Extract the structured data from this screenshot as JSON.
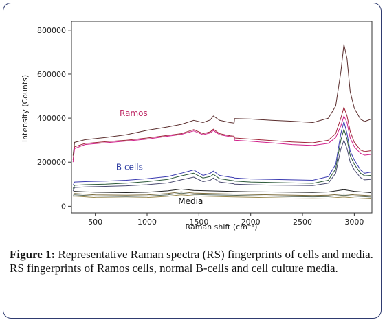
{
  "caption": {
    "label": "Figure 1:",
    "text": " Representative Raman spectra (RS) fingerprints of cells and media. RS fingerprints of Ramos cells, normal B-cells and cell culture media."
  },
  "chart_data": {
    "type": "line",
    "xlabel": "Raman shift (cm⁻¹)",
    "ylabel": "Intensity (Counts)",
    "xlim": [
      270,
      3170
    ],
    "ylim": [
      -30000,
      840000
    ],
    "x_ticks": [
      500,
      1000,
      1500,
      2000,
      2500,
      3000
    ],
    "y_ticks": [
      0,
      200000,
      400000,
      600000,
      800000
    ],
    "y_tick_labels": [
      "0",
      "200000",
      "400000",
      "600000",
      "800000"
    ],
    "annotations": [
      {
        "text": "Ramos",
        "x": 870,
        "y": 410000,
        "color": "#c0306a"
      },
      {
        "text": "B cells",
        "x": 830,
        "y": 165000,
        "color": "#2a3aa0"
      },
      {
        "text": "Media",
        "x": 1420,
        "y": 10000,
        "color": "#111111"
      }
    ],
    "series": [
      {
        "color": "#5a2d2d",
        "values": [
          [
            285,
            230000
          ],
          [
            300,
            290000
          ],
          [
            400,
            302000
          ],
          [
            600,
            312000
          ],
          [
            800,
            325000
          ],
          [
            1000,
            345000
          ],
          [
            1200,
            360000
          ],
          [
            1330,
            372000
          ],
          [
            1450,
            390000
          ],
          [
            1540,
            380000
          ],
          [
            1610,
            392000
          ],
          [
            1640,
            410000
          ],
          [
            1700,
            390000
          ],
          [
            1800,
            380000
          ],
          [
            1840,
            378000
          ],
          [
            1845,
            398000
          ],
          [
            2000,
            396000
          ],
          [
            2200,
            390000
          ],
          [
            2400,
            386000
          ],
          [
            2600,
            380000
          ],
          [
            2750,
            400000
          ],
          [
            2820,
            455000
          ],
          [
            2870,
            610000
          ],
          [
            2900,
            735000
          ],
          [
            2930,
            670000
          ],
          [
            2960,
            520000
          ],
          [
            3000,
            445000
          ],
          [
            3060,
            395000
          ],
          [
            3100,
            385000
          ],
          [
            3160,
            395000
          ]
        ]
      },
      {
        "color": "#a0253a",
        "values": [
          [
            285,
            210000
          ],
          [
            300,
            270000
          ],
          [
            400,
            285000
          ],
          [
            600,
            293000
          ],
          [
            800,
            300000
          ],
          [
            1000,
            310000
          ],
          [
            1200,
            322000
          ],
          [
            1330,
            330000
          ],
          [
            1450,
            348000
          ],
          [
            1540,
            330000
          ],
          [
            1610,
            338000
          ],
          [
            1640,
            350000
          ],
          [
            1700,
            330000
          ],
          [
            1800,
            320000
          ],
          [
            1840,
            318000
          ],
          [
            1845,
            310000
          ],
          [
            2000,
            305000
          ],
          [
            2200,
            298000
          ],
          [
            2400,
            292000
          ],
          [
            2600,
            288000
          ],
          [
            2750,
            300000
          ],
          [
            2820,
            330000
          ],
          [
            2870,
            400000
          ],
          [
            2900,
            450000
          ],
          [
            2930,
            410000
          ],
          [
            2960,
            340000
          ],
          [
            3000,
            290000
          ],
          [
            3060,
            255000
          ],
          [
            3100,
            248000
          ],
          [
            3160,
            252000
          ]
        ]
      },
      {
        "color": "#d0208a",
        "values": [
          [
            285,
            200000
          ],
          [
            300,
            262000
          ],
          [
            400,
            280000
          ],
          [
            600,
            288000
          ],
          [
            800,
            296000
          ],
          [
            1000,
            305000
          ],
          [
            1200,
            318000
          ],
          [
            1330,
            326000
          ],
          [
            1450,
            342000
          ],
          [
            1540,
            325000
          ],
          [
            1610,
            333000
          ],
          [
            1640,
            344000
          ],
          [
            1700,
            325000
          ],
          [
            1800,
            316000
          ],
          [
            1840,
            314000
          ],
          [
            1845,
            300000
          ],
          [
            2000,
            295000
          ],
          [
            2200,
            288000
          ],
          [
            2400,
            280000
          ],
          [
            2600,
            276000
          ],
          [
            2750,
            286000
          ],
          [
            2820,
            312000
          ],
          [
            2870,
            365000
          ],
          [
            2900,
            410000
          ],
          [
            2930,
            380000
          ],
          [
            2960,
            310000
          ],
          [
            3000,
            270000
          ],
          [
            3060,
            240000
          ],
          [
            3100,
            232000
          ],
          [
            3160,
            235000
          ]
        ]
      },
      {
        "color": "#3a3ab0",
        "values": [
          [
            285,
            95000
          ],
          [
            300,
            110000
          ],
          [
            400,
            112000
          ],
          [
            600,
            114000
          ],
          [
            800,
            118000
          ],
          [
            1000,
            125000
          ],
          [
            1200,
            135000
          ],
          [
            1330,
            150000
          ],
          [
            1450,
            165000
          ],
          [
            1540,
            140000
          ],
          [
            1610,
            150000
          ],
          [
            1640,
            160000
          ],
          [
            1700,
            140000
          ],
          [
            1800,
            132000
          ],
          [
            1840,
            130000
          ],
          [
            1845,
            128000
          ],
          [
            2000,
            124000
          ],
          [
            2200,
            122000
          ],
          [
            2400,
            120000
          ],
          [
            2600,
            118000
          ],
          [
            2750,
            135000
          ],
          [
            2820,
            190000
          ],
          [
            2870,
            330000
          ],
          [
            2900,
            385000
          ],
          [
            2930,
            330000
          ],
          [
            2960,
            250000
          ],
          [
            3000,
            210000
          ],
          [
            3060,
            165000
          ],
          [
            3100,
            150000
          ],
          [
            3160,
            155000
          ]
        ]
      },
      {
        "color": "#2d5a3a",
        "values": [
          [
            285,
            80000
          ],
          [
            300,
            95000
          ],
          [
            400,
            98000
          ],
          [
            600,
            100000
          ],
          [
            800,
            105000
          ],
          [
            1000,
            112000
          ],
          [
            1200,
            122000
          ],
          [
            1330,
            138000
          ],
          [
            1450,
            150000
          ],
          [
            1540,
            128000
          ],
          [
            1610,
            135000
          ],
          [
            1640,
            145000
          ],
          [
            1700,
            125000
          ],
          [
            1800,
            118000
          ],
          [
            1840,
            116000
          ],
          [
            1845,
            114000
          ],
          [
            2000,
            110000
          ],
          [
            2200,
            108000
          ],
          [
            2400,
            106000
          ],
          [
            2600,
            104000
          ],
          [
            2750,
            118000
          ],
          [
            2820,
            170000
          ],
          [
            2870,
            300000
          ],
          [
            2900,
            350000
          ],
          [
            2930,
            305000
          ],
          [
            2960,
            230000
          ],
          [
            3000,
            190000
          ],
          [
            3060,
            150000
          ],
          [
            3100,
            138000
          ],
          [
            3160,
            140000
          ]
        ]
      },
      {
        "color": "#4a4a70",
        "values": [
          [
            285,
            70000
          ],
          [
            300,
            85000
          ],
          [
            400,
            88000
          ],
          [
            600,
            90000
          ],
          [
            800,
            93000
          ],
          [
            1000,
            98000
          ],
          [
            1200,
            106000
          ],
          [
            1330,
            120000
          ],
          [
            1450,
            132000
          ],
          [
            1540,
            112000
          ],
          [
            1610,
            118000
          ],
          [
            1640,
            128000
          ],
          [
            1700,
            110000
          ],
          [
            1800,
            104000
          ],
          [
            1840,
            102000
          ],
          [
            1845,
            100000
          ],
          [
            2000,
            98000
          ],
          [
            2200,
            96000
          ],
          [
            2400,
            95000
          ],
          [
            2600,
            94000
          ],
          [
            2750,
            105000
          ],
          [
            2820,
            150000
          ],
          [
            2870,
            260000
          ],
          [
            2900,
            300000
          ],
          [
            2930,
            262000
          ],
          [
            2960,
            200000
          ],
          [
            3000,
            165000
          ],
          [
            3060,
            130000
          ],
          [
            3100,
            120000
          ],
          [
            3160,
            122000
          ]
        ]
      },
      {
        "color": "#222222",
        "values": [
          [
            285,
            65000
          ],
          [
            300,
            68000
          ],
          [
            500,
            64000
          ],
          [
            800,
            62000
          ],
          [
            1000,
            64000
          ],
          [
            1200,
            70000
          ],
          [
            1330,
            78000
          ],
          [
            1450,
            72000
          ],
          [
            1600,
            70000
          ],
          [
            1800,
            68000
          ],
          [
            2000,
            66000
          ],
          [
            2200,
            65000
          ],
          [
            2400,
            64000
          ],
          [
            2600,
            63000
          ],
          [
            2750,
            65000
          ],
          [
            2900,
            75000
          ],
          [
            3000,
            68000
          ],
          [
            3160,
            62000
          ]
        ]
      },
      {
        "color": "#7a6a3a",
        "values": [
          [
            285,
            55000
          ],
          [
            300,
            58000
          ],
          [
            500,
            52000
          ],
          [
            800,
            50000
          ],
          [
            1000,
            52000
          ],
          [
            1200,
            58000
          ],
          [
            1330,
            66000
          ],
          [
            1450,
            60000
          ],
          [
            1600,
            58000
          ],
          [
            1800,
            56000
          ],
          [
            2000,
            54000
          ],
          [
            2200,
            52000
          ],
          [
            2400,
            50000
          ],
          [
            2600,
            49000
          ],
          [
            2750,
            50000
          ],
          [
            2900,
            56000
          ],
          [
            3000,
            52000
          ],
          [
            3160,
            48000
          ]
        ]
      },
      {
        "color": "#5a6a5a",
        "values": [
          [
            285,
            50000
          ],
          [
            300,
            52000
          ],
          [
            500,
            46000
          ],
          [
            800,
            44000
          ],
          [
            1000,
            46000
          ],
          [
            1200,
            52000
          ],
          [
            1330,
            60000
          ],
          [
            1450,
            54000
          ],
          [
            1600,
            52000
          ],
          [
            1800,
            50000
          ],
          [
            2000,
            48000
          ],
          [
            2200,
            46000
          ],
          [
            2400,
            44000
          ],
          [
            2600,
            43000
          ],
          [
            2750,
            44000
          ],
          [
            2900,
            50000
          ],
          [
            3000,
            46000
          ],
          [
            3160,
            42000
          ]
        ]
      },
      {
        "color": "#9a8a50",
        "values": [
          [
            285,
            45000
          ],
          [
            300,
            46000
          ],
          [
            500,
            40000
          ],
          [
            800,
            38000
          ],
          [
            1000,
            40000
          ],
          [
            1200,
            45000
          ],
          [
            1330,
            52000
          ],
          [
            1450,
            47000
          ],
          [
            1600,
            45000
          ],
          [
            1800,
            43000
          ],
          [
            2000,
            41000
          ],
          [
            2200,
            39000
          ],
          [
            2400,
            37000
          ],
          [
            2600,
            36000
          ],
          [
            2750,
            37000
          ],
          [
            2900,
            42000
          ],
          [
            3000,
            38000
          ],
          [
            3160,
            34000
          ]
        ]
      }
    ]
  }
}
